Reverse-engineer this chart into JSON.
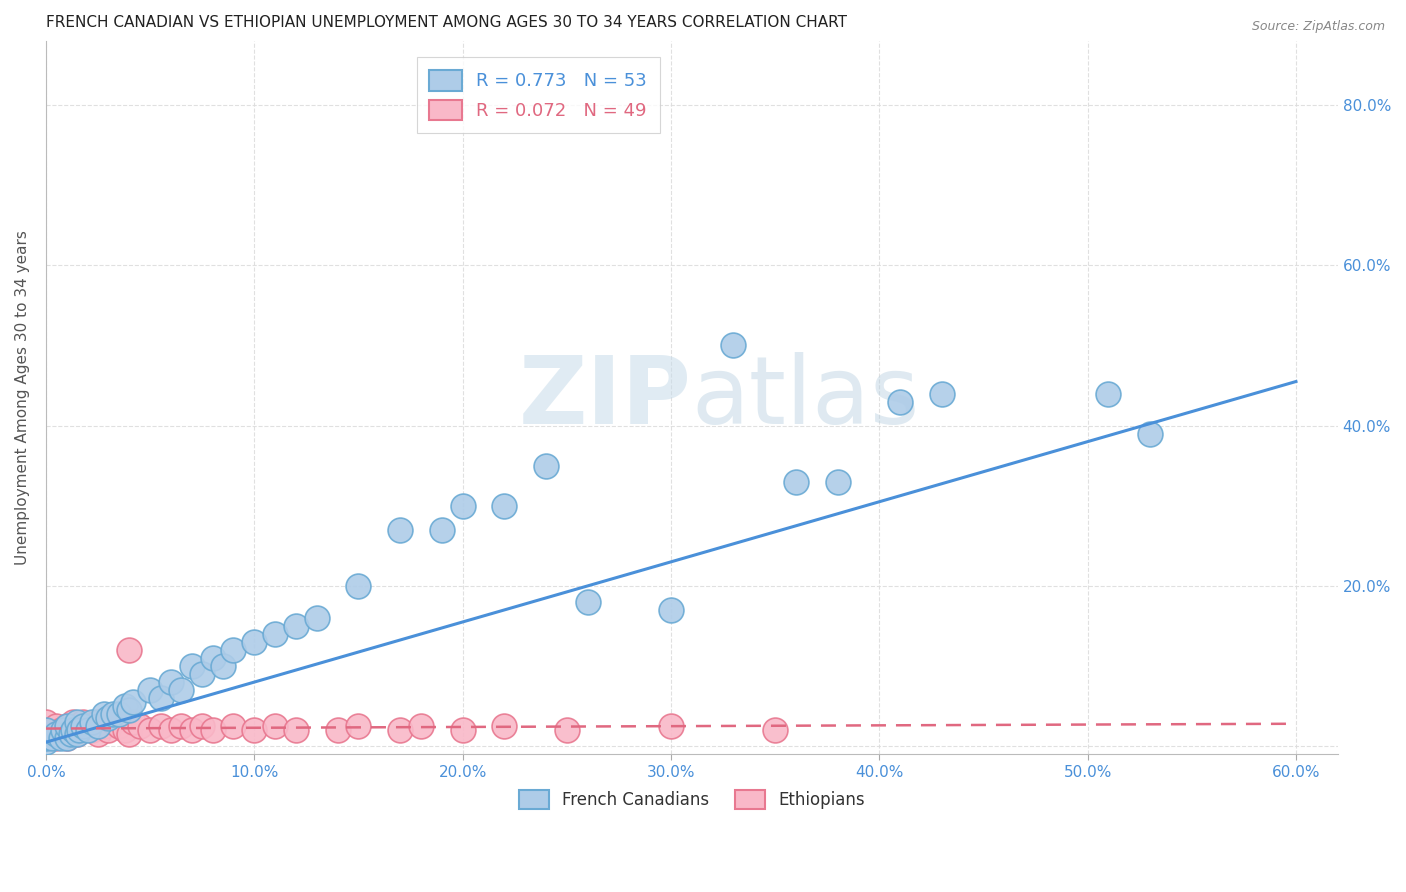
{
  "title": "FRENCH CANADIAN VS ETHIOPIAN UNEMPLOYMENT AMONG AGES 30 TO 34 YEARS CORRELATION CHART",
  "source": "Source: ZipAtlas.com",
  "ylabel": "Unemployment Among Ages 30 to 34 years",
  "xlim": [
    0.0,
    0.62
  ],
  "ylim": [
    -0.01,
    0.88
  ],
  "x_ticks": [
    0.0,
    0.1,
    0.2,
    0.3,
    0.4,
    0.5,
    0.6
  ],
  "x_tick_labels": [
    "0.0%",
    "10.0%",
    "20.0%",
    "30.0%",
    "40.0%",
    "50.0%",
    "60.0%"
  ],
  "y_ticks": [
    0.0,
    0.2,
    0.4,
    0.6,
    0.8
  ],
  "y_tick_labels_right": [
    "",
    "20.0%",
    "40.0%",
    "60.0%",
    "80.0%"
  ],
  "french_canadian_R": 0.773,
  "french_canadian_N": 53,
  "ethiopian_R": 0.072,
  "ethiopian_N": 49,
  "french_canadian_color": "#aecce8",
  "french_canadian_edge_color": "#6aaad4",
  "french_canadian_line_color": "#4a90d9",
  "ethiopian_color": "#f9b8c8",
  "ethiopian_edge_color": "#e87890",
  "ethiopian_line_color": "#e06880",
  "watermark_color": "#dce8f0",
  "background_color": "#ffffff",
  "grid_color": "#dddddd",
  "tick_color": "#4a90d9",
  "fc_x": [
    0.0,
    0.0,
    0.0,
    0.003,
    0.005,
    0.007,
    0.008,
    0.01,
    0.01,
    0.012,
    0.013,
    0.015,
    0.015,
    0.016,
    0.018,
    0.02,
    0.022,
    0.025,
    0.028,
    0.03,
    0.032,
    0.035,
    0.038,
    0.04,
    0.042,
    0.05,
    0.055,
    0.06,
    0.065,
    0.07,
    0.075,
    0.08,
    0.085,
    0.09,
    0.1,
    0.11,
    0.12,
    0.13,
    0.15,
    0.17,
    0.19,
    0.2,
    0.22,
    0.24,
    0.26,
    0.3,
    0.33,
    0.36,
    0.38,
    0.41,
    0.43,
    0.51,
    0.53
  ],
  "fc_y": [
    0.005,
    0.01,
    0.02,
    0.01,
    0.015,
    0.01,
    0.02,
    0.01,
    0.025,
    0.015,
    0.02,
    0.015,
    0.03,
    0.02,
    0.025,
    0.02,
    0.03,
    0.025,
    0.04,
    0.035,
    0.04,
    0.04,
    0.05,
    0.045,
    0.055,
    0.07,
    0.06,
    0.08,
    0.07,
    0.1,
    0.09,
    0.11,
    0.1,
    0.12,
    0.13,
    0.14,
    0.15,
    0.16,
    0.2,
    0.27,
    0.27,
    0.3,
    0.3,
    0.35,
    0.18,
    0.17,
    0.5,
    0.33,
    0.33,
    0.43,
    0.44,
    0.44,
    0.39
  ],
  "eth_x": [
    0.0,
    0.0,
    0.0,
    0.003,
    0.005,
    0.005,
    0.007,
    0.008,
    0.01,
    0.01,
    0.012,
    0.013,
    0.015,
    0.015,
    0.016,
    0.018,
    0.02,
    0.022,
    0.025,
    0.025,
    0.028,
    0.03,
    0.032,
    0.035,
    0.038,
    0.04,
    0.04,
    0.042,
    0.045,
    0.05,
    0.055,
    0.06,
    0.065,
    0.07,
    0.075,
    0.08,
    0.09,
    0.1,
    0.11,
    0.12,
    0.14,
    0.15,
    0.17,
    0.18,
    0.2,
    0.22,
    0.25,
    0.3,
    0.35
  ],
  "eth_y": [
    0.01,
    0.02,
    0.03,
    0.015,
    0.01,
    0.025,
    0.02,
    0.015,
    0.01,
    0.025,
    0.02,
    0.03,
    0.015,
    0.025,
    0.02,
    0.03,
    0.025,
    0.02,
    0.015,
    0.03,
    0.025,
    0.02,
    0.03,
    0.025,
    0.02,
    0.015,
    0.12,
    0.03,
    0.025,
    0.02,
    0.025,
    0.02,
    0.025,
    0.02,
    0.025,
    0.02,
    0.025,
    0.02,
    0.025,
    0.02,
    0.02,
    0.025,
    0.02,
    0.025,
    0.02,
    0.025,
    0.02,
    0.025,
    0.02
  ],
  "fc_line_x": [
    0.0,
    0.6
  ],
  "fc_line_y": [
    0.005,
    0.455
  ],
  "eth_line_x": [
    0.0,
    0.6
  ],
  "eth_line_y": [
    0.022,
    0.028
  ]
}
